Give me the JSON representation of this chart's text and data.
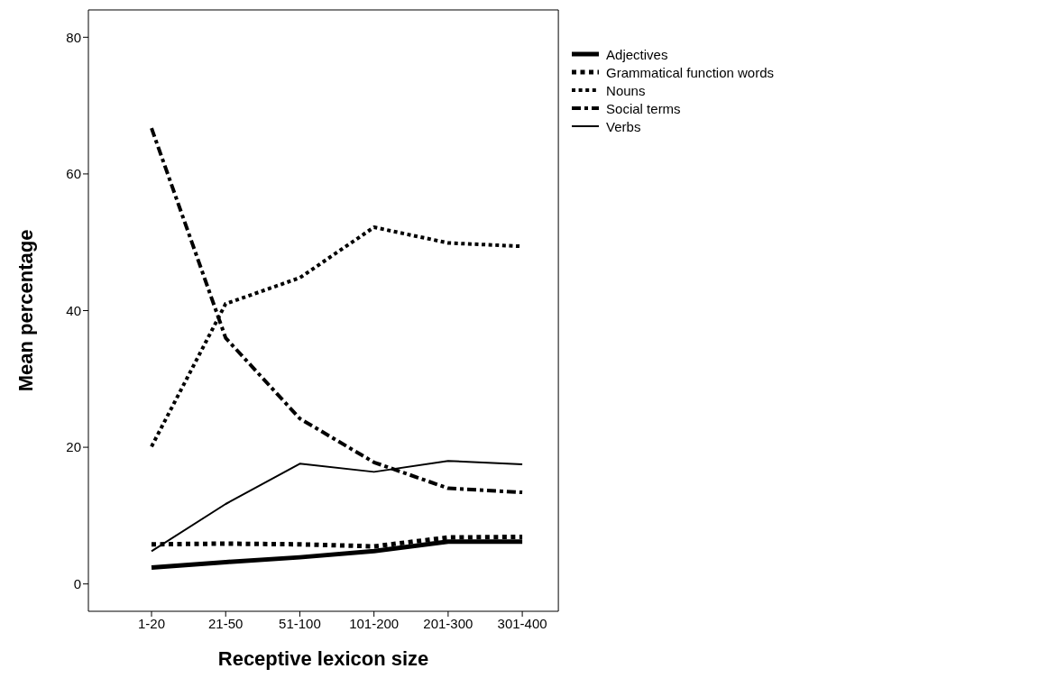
{
  "chart_data": {
    "type": "line",
    "xlabel": "Receptive lexicon size",
    "ylabel": "Mean percentage",
    "categories": [
      "1-20",
      "21-50",
      "51-100",
      "101-200",
      "201-300",
      "301-400"
    ],
    "ylim": [
      -4,
      84
    ],
    "yticks": [
      0,
      20,
      40,
      60,
      80
    ],
    "legend": "top right",
    "marker": "none",
    "series": [
      {
        "name": "Adjectives",
        "color": "#000000",
        "line_style": "solid",
        "values": [
          2.4,
          3.2,
          3.9,
          4.8,
          6.2,
          6.2
        ]
      },
      {
        "name": "Grammatical function words",
        "color": "#000000",
        "line_style": "dotted",
        "values": [
          5.8,
          5.9,
          5.8,
          5.5,
          6.8,
          6.9
        ]
      },
      {
        "name": "Nouns",
        "color": "#000000",
        "line_style": "dotted",
        "values": [
          20.1,
          41.0,
          44.8,
          52.2,
          49.9,
          49.4
        ]
      },
      {
        "name": "Social terms",
        "color": "#000000",
        "line_style": "dashed",
        "values": [
          66.7,
          36.0,
          24.2,
          17.8,
          14.0,
          13.4
        ]
      },
      {
        "name": "Verbs",
        "color": "#000000",
        "line_style": "solid",
        "values": [
          4.8,
          11.7,
          17.6,
          16.4,
          18.0,
          17.5
        ]
      }
    ]
  }
}
